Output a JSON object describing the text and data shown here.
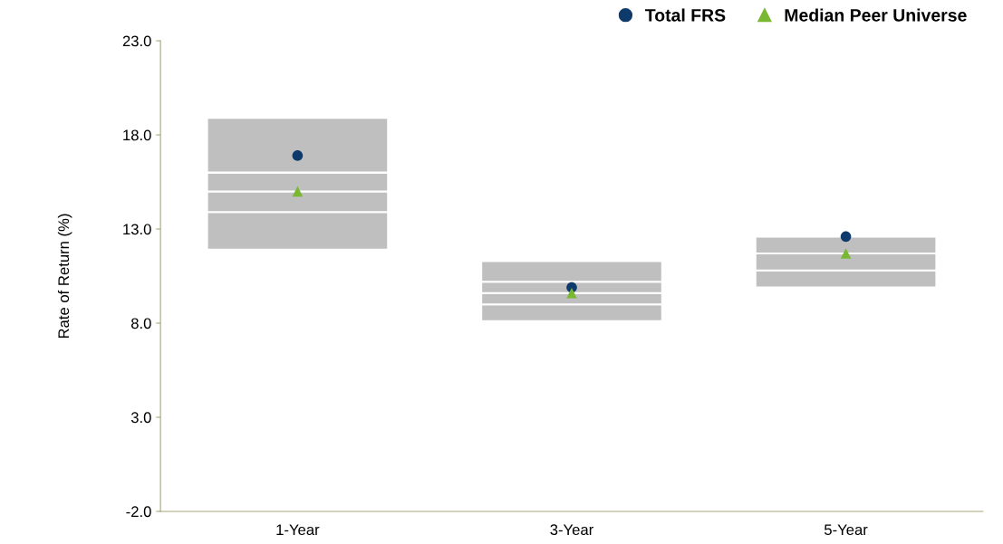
{
  "chart_data": {
    "type": "bar",
    "ylabel": "Rate of Return (%)",
    "categories": [
      "1-Year",
      "3-Year",
      "5-Year"
    ],
    "series": [
      {
        "color": "#bfbfbf",
        "base": [
          11.9,
          8.1,
          9.9
        ],
        "values": [
          2.0,
          0.9,
          0.9
        ]
      },
      {
        "color": "#bfbfbf",
        "base": [
          13.9,
          9.0,
          10.8
        ],
        "values": [
          1.1,
          0.6,
          0.9
        ]
      },
      {
        "color": "#bfbfbf",
        "base": [
          15.0,
          9.6,
          11.7
        ],
        "values": [
          1.0,
          0.6,
          0.9
        ]
      },
      {
        "color": "#bfbfbf",
        "base": [
          16.0,
          10.2,
          null
        ],
        "values": [
          2.9,
          1.1,
          null
        ]
      },
      {
        "name": "Total FRS",
        "type": "scatter",
        "marker": "circle",
        "color": "#0e3a6b",
        "x": [
          "1-Year",
          "3-Year",
          "5-Year"
        ],
        "values": [
          16.9,
          9.9,
          12.6
        ]
      },
      {
        "name": "Median Peer Universe",
        "type": "scatter",
        "marker": "triangle",
        "color": "#7ab833",
        "x": [
          "1-Year",
          "3-Year",
          "5-Year"
        ],
        "values": [
          15.0,
          9.6,
          11.7
        ]
      }
    ],
    "ylim": [
      -2.0,
      23.0
    ],
    "yticks": [
      {
        "value": -2,
        "label": "-2.0"
      },
      {
        "value": 3,
        "label": "3.0"
      },
      {
        "value": 8,
        "label": "8.0"
      },
      {
        "value": 13,
        "label": "13.0"
      },
      {
        "value": 18,
        "label": "18.0"
      },
      {
        "value": 23,
        "label": "23.0"
      }
    ],
    "grid": false,
    "legend": "top right"
  }
}
